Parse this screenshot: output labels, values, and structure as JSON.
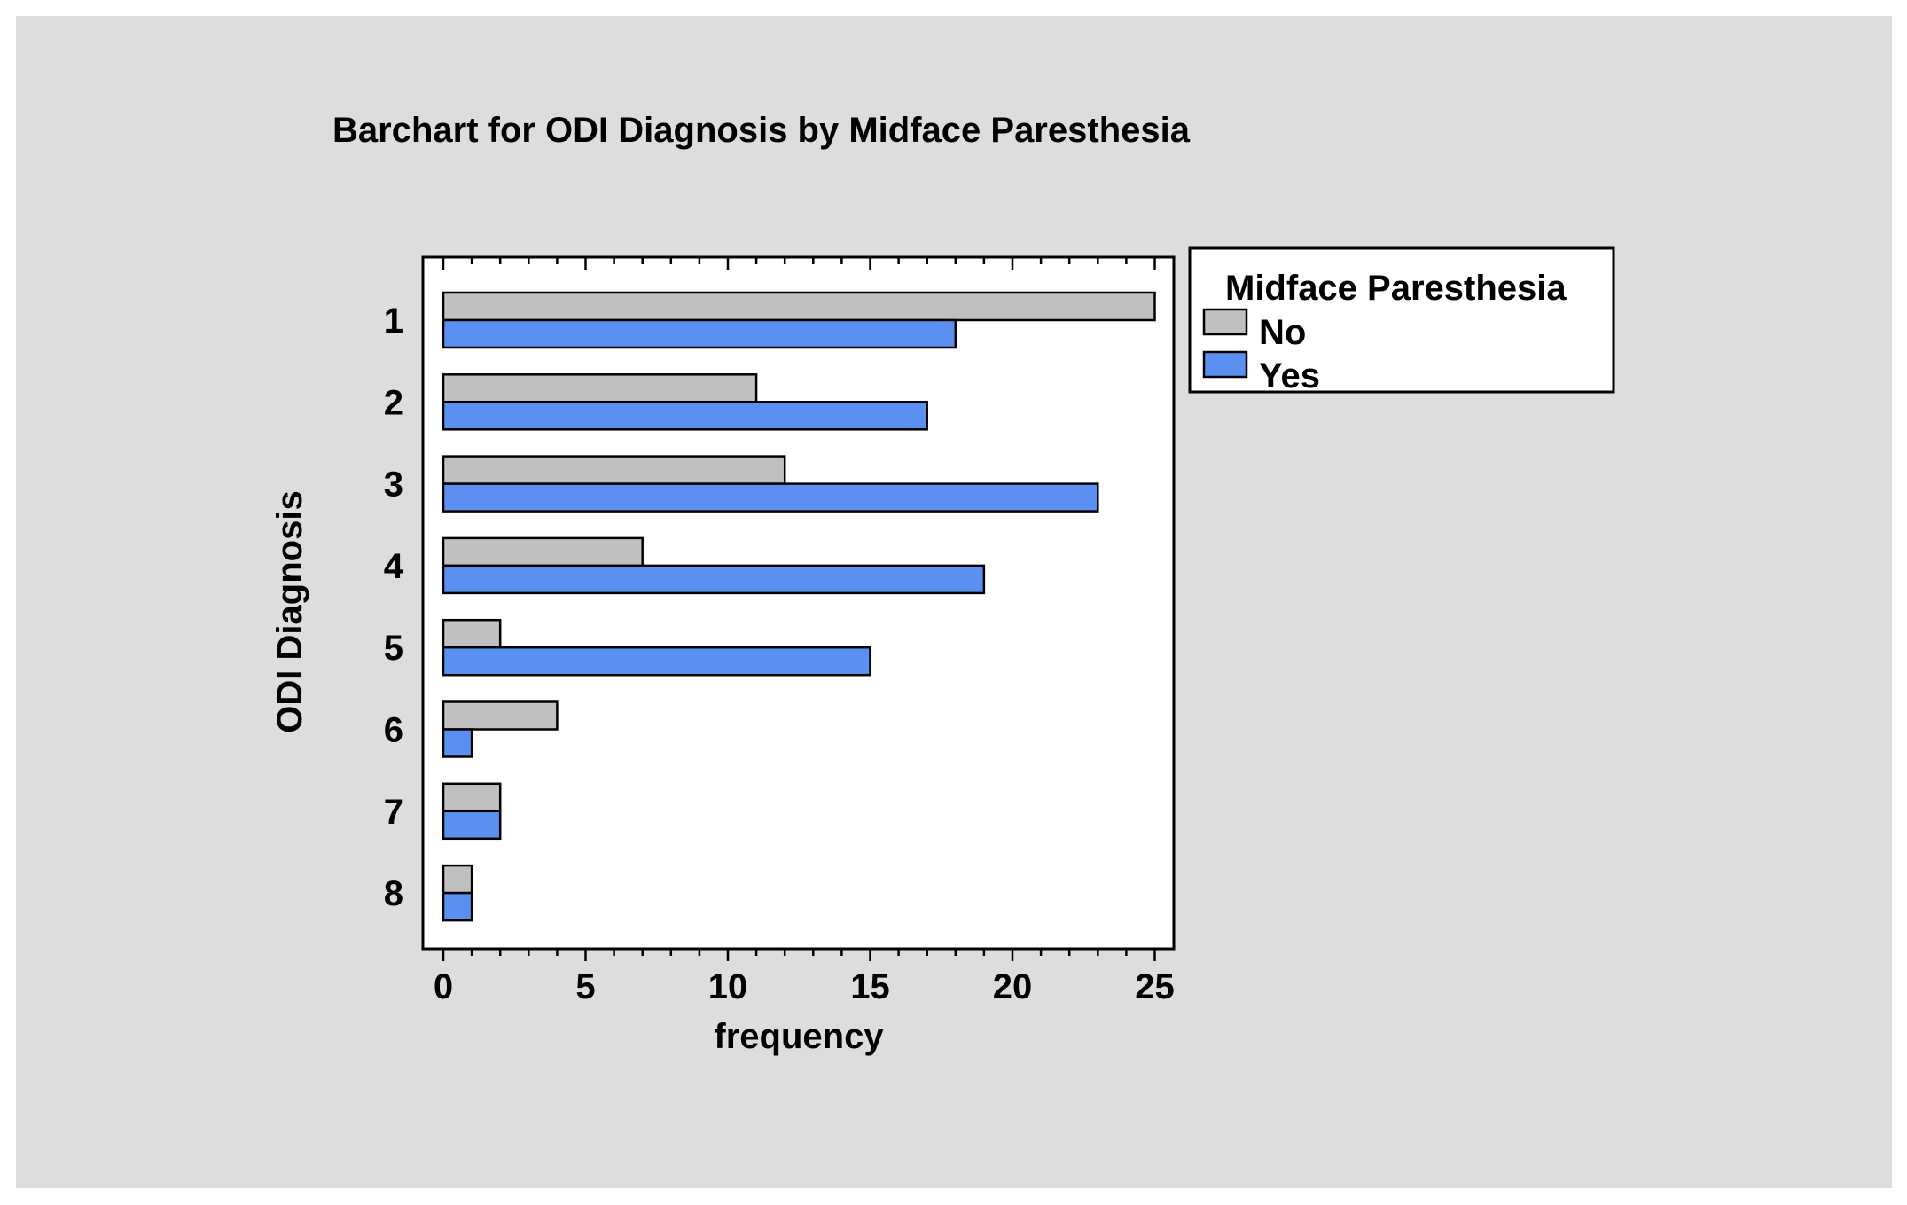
{
  "chart_data": {
    "type": "bar",
    "orientation": "horizontal",
    "title": "Barchart for ODI Diagnosis by Midface Paresthesia",
    "xlabel": "frequency",
    "ylabel": "ODI Diagnosis",
    "categories": [
      "1",
      "2",
      "3",
      "4",
      "5",
      "6",
      "7",
      "8"
    ],
    "xlim": [
      0,
      26
    ],
    "xticks": [
      "0",
      "5",
      "10",
      "15",
      "20",
      "25"
    ],
    "legend": {
      "title": "Midface Paresthesia",
      "placement": "right-top"
    },
    "series": [
      {
        "name": "No",
        "color": "#c0c0c0",
        "values": [
          25,
          11,
          12,
          7,
          2,
          4,
          2,
          1
        ]
      },
      {
        "name": "Yes",
        "color": "#5b8ff0",
        "values": [
          18,
          17,
          23,
          19,
          15,
          1,
          2,
          1
        ]
      }
    ]
  }
}
